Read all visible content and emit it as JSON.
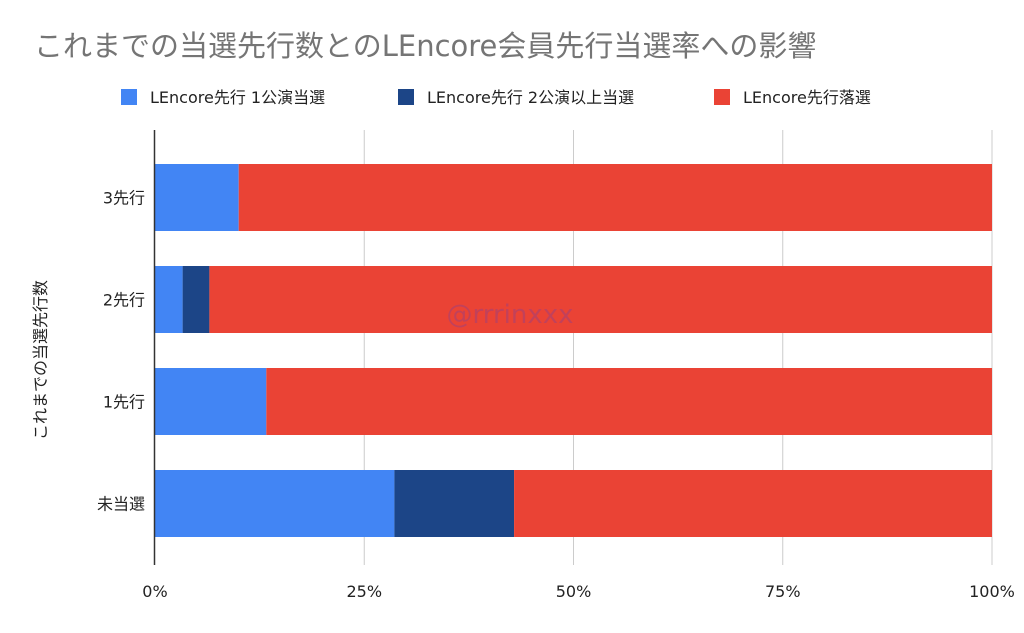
{
  "chart_data": {
    "type": "bar",
    "orientation": "horizontal",
    "stacked": "percent",
    "title": "これまでの当選先行数とのLEncore会員先行当選率への影響",
    "xlabel": "",
    "ylabel": "これまでの当選先行数",
    "xlim": [
      0,
      100
    ],
    "x_ticks": [
      "0%",
      "25%",
      "50%",
      "75%",
      "100%"
    ],
    "categories": [
      "3先行",
      "2先行",
      "1先行",
      "未当選"
    ],
    "series": [
      {
        "name": "LEncore先行 1公演当選",
        "color": "#4285f4",
        "values": [
          10.0,
          3.3,
          13.3,
          28.6
        ]
      },
      {
        "name": "LEncore先行 2公演以上当選",
        "color": "#1c4587",
        "values": [
          0,
          3.2,
          0,
          14.3
        ]
      },
      {
        "name": "LEncore先行落選",
        "color": "#ea4335",
        "values": [
          90.0,
          93.5,
          86.7,
          57.1
        ]
      }
    ],
    "grid": true,
    "legend_position": "top",
    "watermark": "@rrrinxxx"
  }
}
